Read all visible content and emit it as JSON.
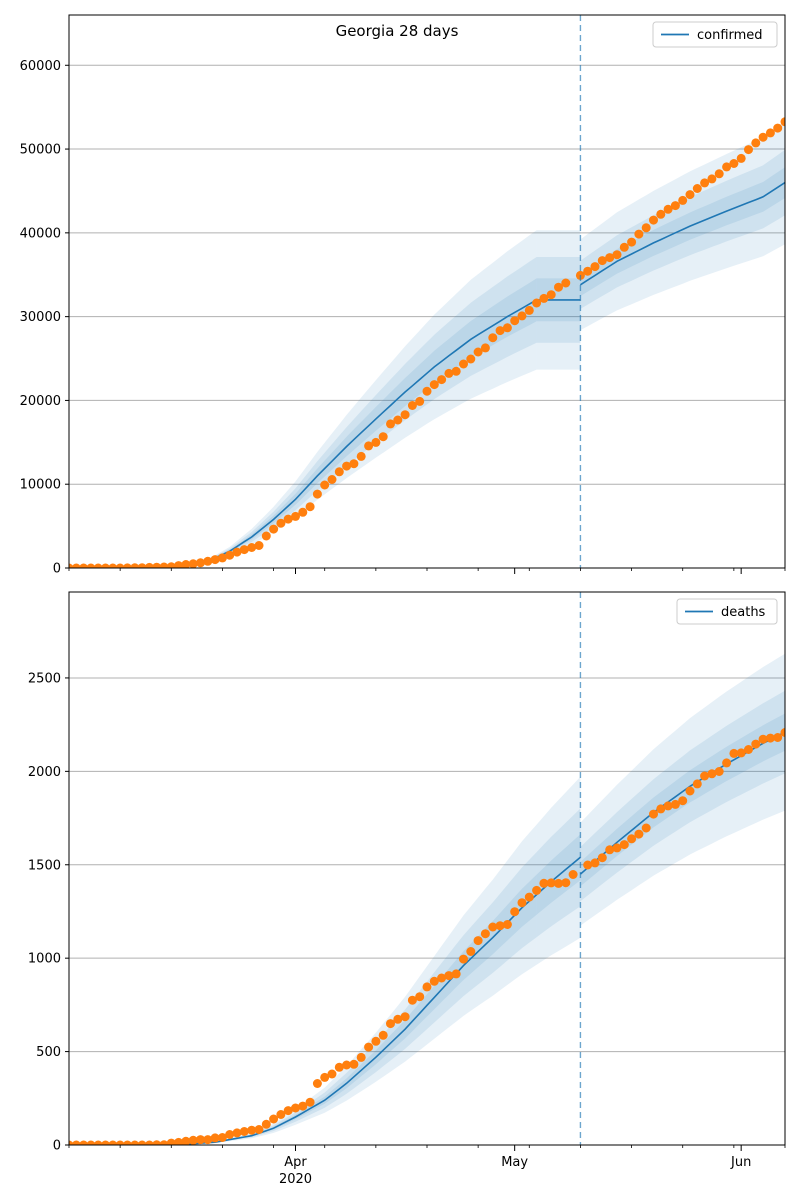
{
  "figure_title": "Georgia 28 days",
  "colors": {
    "model_line": "#1f77b4",
    "band_fill": "#1f77b4",
    "observed_points": "#ff7f0e",
    "vline": "#1f77b4",
    "grid": "#b0b0b0",
    "axes": "#000000"
  },
  "chart_data": [
    {
      "type": "line",
      "legend": "confirmed",
      "legend_position": "top-right",
      "grid": "horizontal",
      "start_date": "2020-03-01",
      "x_range_days": [
        0,
        98
      ],
      "forecast_start_day": 70,
      "ylim": [
        0,
        66000
      ],
      "yticks": [
        0,
        10000,
        20000,
        30000,
        40000,
        50000,
        60000
      ],
      "xticks": [
        {
          "day": 31,
          "label": "Apr",
          "sub": "2020"
        },
        {
          "day": 61,
          "label": "May",
          "sub": ""
        },
        {
          "day": 92,
          "label": "Jun",
          "sub": ""
        }
      ],
      "fit_anchors": [
        [
          0,
          0
        ],
        [
          10,
          20
        ],
        [
          15,
          120
        ],
        [
          18,
          600
        ],
        [
          20,
          1200
        ],
        [
          22,
          2000
        ],
        [
          25,
          3700
        ],
        [
          28,
          5800
        ],
        [
          31,
          8200
        ],
        [
          34,
          11000
        ],
        [
          38,
          14500
        ],
        [
          42,
          17800
        ],
        [
          46,
          21000
        ],
        [
          50,
          24000
        ],
        [
          55,
          27300
        ],
        [
          60,
          30000
        ],
        [
          64,
          32000
        ]
      ],
      "forecast_anchors": [
        [
          70,
          33800
        ],
        [
          75,
          36600
        ],
        [
          80,
          38800
        ],
        [
          85,
          40800
        ],
        [
          90,
          42600
        ],
        [
          95,
          44300
        ],
        [
          98,
          46000
        ]
      ],
      "fit_band_width": [
        0.08,
        0.16,
        0.26
      ],
      "forecast_band_width": [
        0.04,
        0.085,
        0.16
      ],
      "observed": [
        [
          0,
          0
        ],
        [
          1,
          0
        ],
        [
          2,
          0
        ],
        [
          3,
          0
        ],
        [
          4,
          0
        ],
        [
          5,
          0
        ],
        [
          6,
          2
        ],
        [
          7,
          5
        ],
        [
          8,
          10
        ],
        [
          9,
          20
        ],
        [
          10,
          40
        ],
        [
          11,
          66
        ],
        [
          12,
          99
        ],
        [
          13,
          121
        ],
        [
          14,
          146
        ],
        [
          15,
          287
        ],
        [
          16,
          420
        ],
        [
          17,
          507
        ],
        [
          18,
          620
        ],
        [
          19,
          800
        ],
        [
          20,
          1000
        ],
        [
          21,
          1200
        ],
        [
          22,
          1525
        ],
        [
          23,
          1897
        ],
        [
          24,
          2198
        ],
        [
          25,
          2446
        ],
        [
          26,
          2683
        ],
        [
          27,
          3817
        ],
        [
          28,
          4638
        ],
        [
          29,
          5348
        ],
        [
          30,
          5831
        ],
        [
          31,
          6160
        ],
        [
          32,
          6647
        ],
        [
          33,
          7314
        ],
        [
          34,
          8818
        ],
        [
          35,
          9901
        ],
        [
          36,
          10566
        ],
        [
          37,
          11483
        ],
        [
          38,
          12159
        ],
        [
          39,
          12452
        ],
        [
          40,
          13315
        ],
        [
          41,
          14578
        ],
        [
          42,
          14987
        ],
        [
          43,
          15669
        ],
        [
          44,
          17194
        ],
        [
          45,
          17669
        ],
        [
          46,
          18301
        ],
        [
          47,
          19399
        ],
        [
          48,
          19881
        ],
        [
          49,
          21102
        ],
        [
          50,
          21883
        ],
        [
          51,
          22491
        ],
        [
          52,
          23222
        ],
        [
          53,
          23481
        ],
        [
          54,
          24348
        ],
        [
          55,
          24942
        ],
        [
          56,
          25775
        ],
        [
          57,
          26264
        ],
        [
          58,
          27492
        ],
        [
          59,
          28331
        ],
        [
          60,
          28665
        ],
        [
          61,
          29512
        ],
        [
          62,
          30087
        ],
        [
          63,
          30743
        ],
        [
          64,
          31624
        ],
        [
          65,
          32181
        ],
        [
          66,
          32614
        ],
        [
          67,
          33508
        ],
        [
          68,
          34020
        ],
        [
          70,
          34919
        ],
        [
          71,
          35427
        ],
        [
          72,
          35977
        ],
        [
          73,
          36683
        ],
        [
          74,
          37040
        ],
        [
          75,
          37389
        ],
        [
          76,
          38281
        ],
        [
          77,
          38890
        ],
        [
          78,
          39846
        ],
        [
          79,
          40598
        ],
        [
          80,
          41520
        ],
        [
          81,
          42219
        ],
        [
          82,
          42807
        ],
        [
          83,
          43253
        ],
        [
          84,
          43873
        ],
        [
          85,
          44565
        ],
        [
          86,
          45290
        ],
        [
          87,
          45965
        ],
        [
          88,
          46436
        ],
        [
          89,
          47048
        ],
        [
          90,
          47870
        ],
        [
          91,
          48279
        ],
        [
          92,
          48891
        ],
        [
          93,
          49934
        ],
        [
          94,
          50735
        ],
        [
          95,
          51413
        ],
        [
          96,
          51928
        ],
        [
          97,
          52497
        ],
        [
          98,
          53256
        ]
      ]
    },
    {
      "type": "line",
      "legend": "deaths",
      "legend_position": "top-right",
      "grid": "horizontal",
      "start_date": "2020-03-01",
      "x_range_days": [
        0,
        98
      ],
      "forecast_start_day": 70,
      "ylim": [
        0,
        2960
      ],
      "yticks": [
        0,
        500,
        1000,
        1500,
        2000,
        2500
      ],
      "xticks": [
        {
          "day": 31,
          "label": "Apr",
          "sub": "2020"
        },
        {
          "day": 61,
          "label": "May",
          "sub": ""
        },
        {
          "day": 92,
          "label": "Jun",
          "sub": ""
        }
      ],
      "fit_anchors": [
        [
          0,
          0
        ],
        [
          15,
          2
        ],
        [
          20,
          15
        ],
        [
          25,
          50
        ],
        [
          28,
          90
        ],
        [
          31,
          150
        ],
        [
          35,
          240
        ],
        [
          38,
          330
        ],
        [
          42,
          470
        ],
        [
          46,
          620
        ],
        [
          50,
          790
        ],
        [
          54,
          960
        ],
        [
          58,
          1110
        ],
        [
          62,
          1270
        ],
        [
          66,
          1410
        ],
        [
          70,
          1540
        ]
      ],
      "forecast_anchors": [
        [
          70,
          1450
        ],
        [
          75,
          1620
        ],
        [
          80,
          1780
        ],
        [
          85,
          1920
        ],
        [
          90,
          2040
        ],
        [
          95,
          2150
        ],
        [
          98,
          2210
        ]
      ],
      "fit_band_width": [
        0.08,
        0.17,
        0.28
      ],
      "forecast_band_width": [
        0.045,
        0.1,
        0.19
      ],
      "observed": [
        [
          0,
          0
        ],
        [
          1,
          0
        ],
        [
          2,
          0
        ],
        [
          3,
          0
        ],
        [
          4,
          0
        ],
        [
          5,
          0
        ],
        [
          6,
          0
        ],
        [
          7,
          0
        ],
        [
          8,
          0
        ],
        [
          9,
          0
        ],
        [
          10,
          0
        ],
        [
          11,
          0
        ],
        [
          12,
          1
        ],
        [
          13,
          1
        ],
        [
          14,
          10
        ],
        [
          15,
          14
        ],
        [
          16,
          20
        ],
        [
          17,
          25
        ],
        [
          18,
          29
        ],
        [
          19,
          29
        ],
        [
          20,
          38
        ],
        [
          21,
          40
        ],
        [
          22,
          56
        ],
        [
          23,
          65
        ],
        [
          24,
          72
        ],
        [
          25,
          79
        ],
        [
          26,
          83
        ],
        [
          27,
          111
        ],
        [
          28,
          139
        ],
        [
          29,
          163
        ],
        [
          30,
          184
        ],
        [
          31,
          198
        ],
        [
          32,
          208
        ],
        [
          33,
          229
        ],
        [
          34,
          329
        ],
        [
          35,
          362
        ],
        [
          36,
          380
        ],
        [
          37,
          416
        ],
        [
          38,
          428
        ],
        [
          39,
          432
        ],
        [
          40,
          469
        ],
        [
          41,
          524
        ],
        [
          42,
          555
        ],
        [
          43,
          587
        ],
        [
          44,
          650
        ],
        [
          45,
          673
        ],
        [
          46,
          687
        ],
        [
          47,
          775
        ],
        [
          48,
          794
        ],
        [
          49,
          846
        ],
        [
          50,
          876
        ],
        [
          51,
          894
        ],
        [
          52,
          907
        ],
        [
          53,
          916
        ],
        [
          54,
          995
        ],
        [
          55,
          1036
        ],
        [
          56,
          1094
        ],
        [
          57,
          1131
        ],
        [
          58,
          1167
        ],
        [
          59,
          1174
        ],
        [
          60,
          1180
        ],
        [
          61,
          1249
        ],
        [
          62,
          1297
        ],
        [
          63,
          1327
        ],
        [
          64,
          1363
        ],
        [
          65,
          1401
        ],
        [
          66,
          1403
        ],
        [
          67,
          1400
        ],
        [
          68,
          1404
        ],
        [
          69,
          1448
        ],
        [
          71,
          1499
        ],
        [
          72,
          1510
        ],
        [
          73,
          1538
        ],
        [
          74,
          1580
        ],
        [
          75,
          1590
        ],
        [
          76,
          1608
        ],
        [
          77,
          1639
        ],
        [
          78,
          1664
        ],
        [
          79,
          1697
        ],
        [
          80,
          1771
        ],
        [
          81,
          1799
        ],
        [
          82,
          1815
        ],
        [
          83,
          1823
        ],
        [
          84,
          1843
        ],
        [
          85,
          1895
        ],
        [
          86,
          1933
        ],
        [
          87,
          1975
        ],
        [
          88,
          1987
        ],
        [
          89,
          1999
        ],
        [
          90,
          2045
        ],
        [
          91,
          2096
        ],
        [
          92,
          2099
        ],
        [
          93,
          2117
        ],
        [
          94,
          2146
        ],
        [
          95,
          2172
        ],
        [
          96,
          2178
        ],
        [
          97,
          2181
        ],
        [
          98,
          2208
        ]
      ]
    }
  ]
}
